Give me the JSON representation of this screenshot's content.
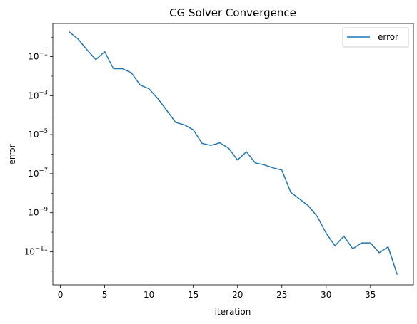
{
  "chart_data": {
    "type": "line",
    "title": "CG Solver Convergence",
    "xlabel": "iteration",
    "ylabel": "error",
    "yscale": "log",
    "xlim": [
      -0.85,
      39.85
    ],
    "ylim_exponent": [
      -12.7,
      0.7
    ],
    "grid": false,
    "legend_position": "top-right",
    "x_ticks": [
      0,
      5,
      10,
      15,
      20,
      25,
      30,
      35
    ],
    "y_ticks": [
      {
        "exp": -11,
        "label_base": "10",
        "label_exp": "−11"
      },
      {
        "exp": -9,
        "label_base": "10",
        "label_exp": "−9"
      },
      {
        "exp": -7,
        "label_base": "10",
        "label_exp": "−7"
      },
      {
        "exp": -5,
        "label_base": "10",
        "label_exp": "−5"
      },
      {
        "exp": -3,
        "label_base": "10",
        "label_exp": "−3"
      },
      {
        "exp": -1,
        "label_base": "10",
        "label_exp": "−1"
      }
    ],
    "series": [
      {
        "name": "error",
        "color": "#1f77b4",
        "x": [
          1,
          2,
          3,
          4,
          5,
          6,
          7,
          8,
          9,
          10,
          11,
          12,
          13,
          14,
          15,
          16,
          17,
          18,
          19,
          20,
          21,
          22,
          23,
          24,
          25,
          26,
          27,
          28,
          29,
          30,
          31,
          32,
          33,
          34,
          35,
          36,
          37,
          38
        ],
        "log10_y": [
          0.27,
          -0.1,
          -0.65,
          -1.15,
          -0.75,
          -1.62,
          -1.62,
          -1.82,
          -2.45,
          -2.65,
          -3.15,
          -3.75,
          -4.37,
          -4.5,
          -4.75,
          -5.45,
          -5.55,
          -5.42,
          -5.7,
          -6.3,
          -5.88,
          -6.45,
          -6.55,
          -6.7,
          -6.82,
          -7.95,
          -8.3,
          -8.65,
          -9.2,
          -10.05,
          -10.7,
          -10.2,
          -10.85,
          -10.55,
          -10.55,
          -11.05,
          -10.75,
          -12.15
        ]
      }
    ]
  }
}
